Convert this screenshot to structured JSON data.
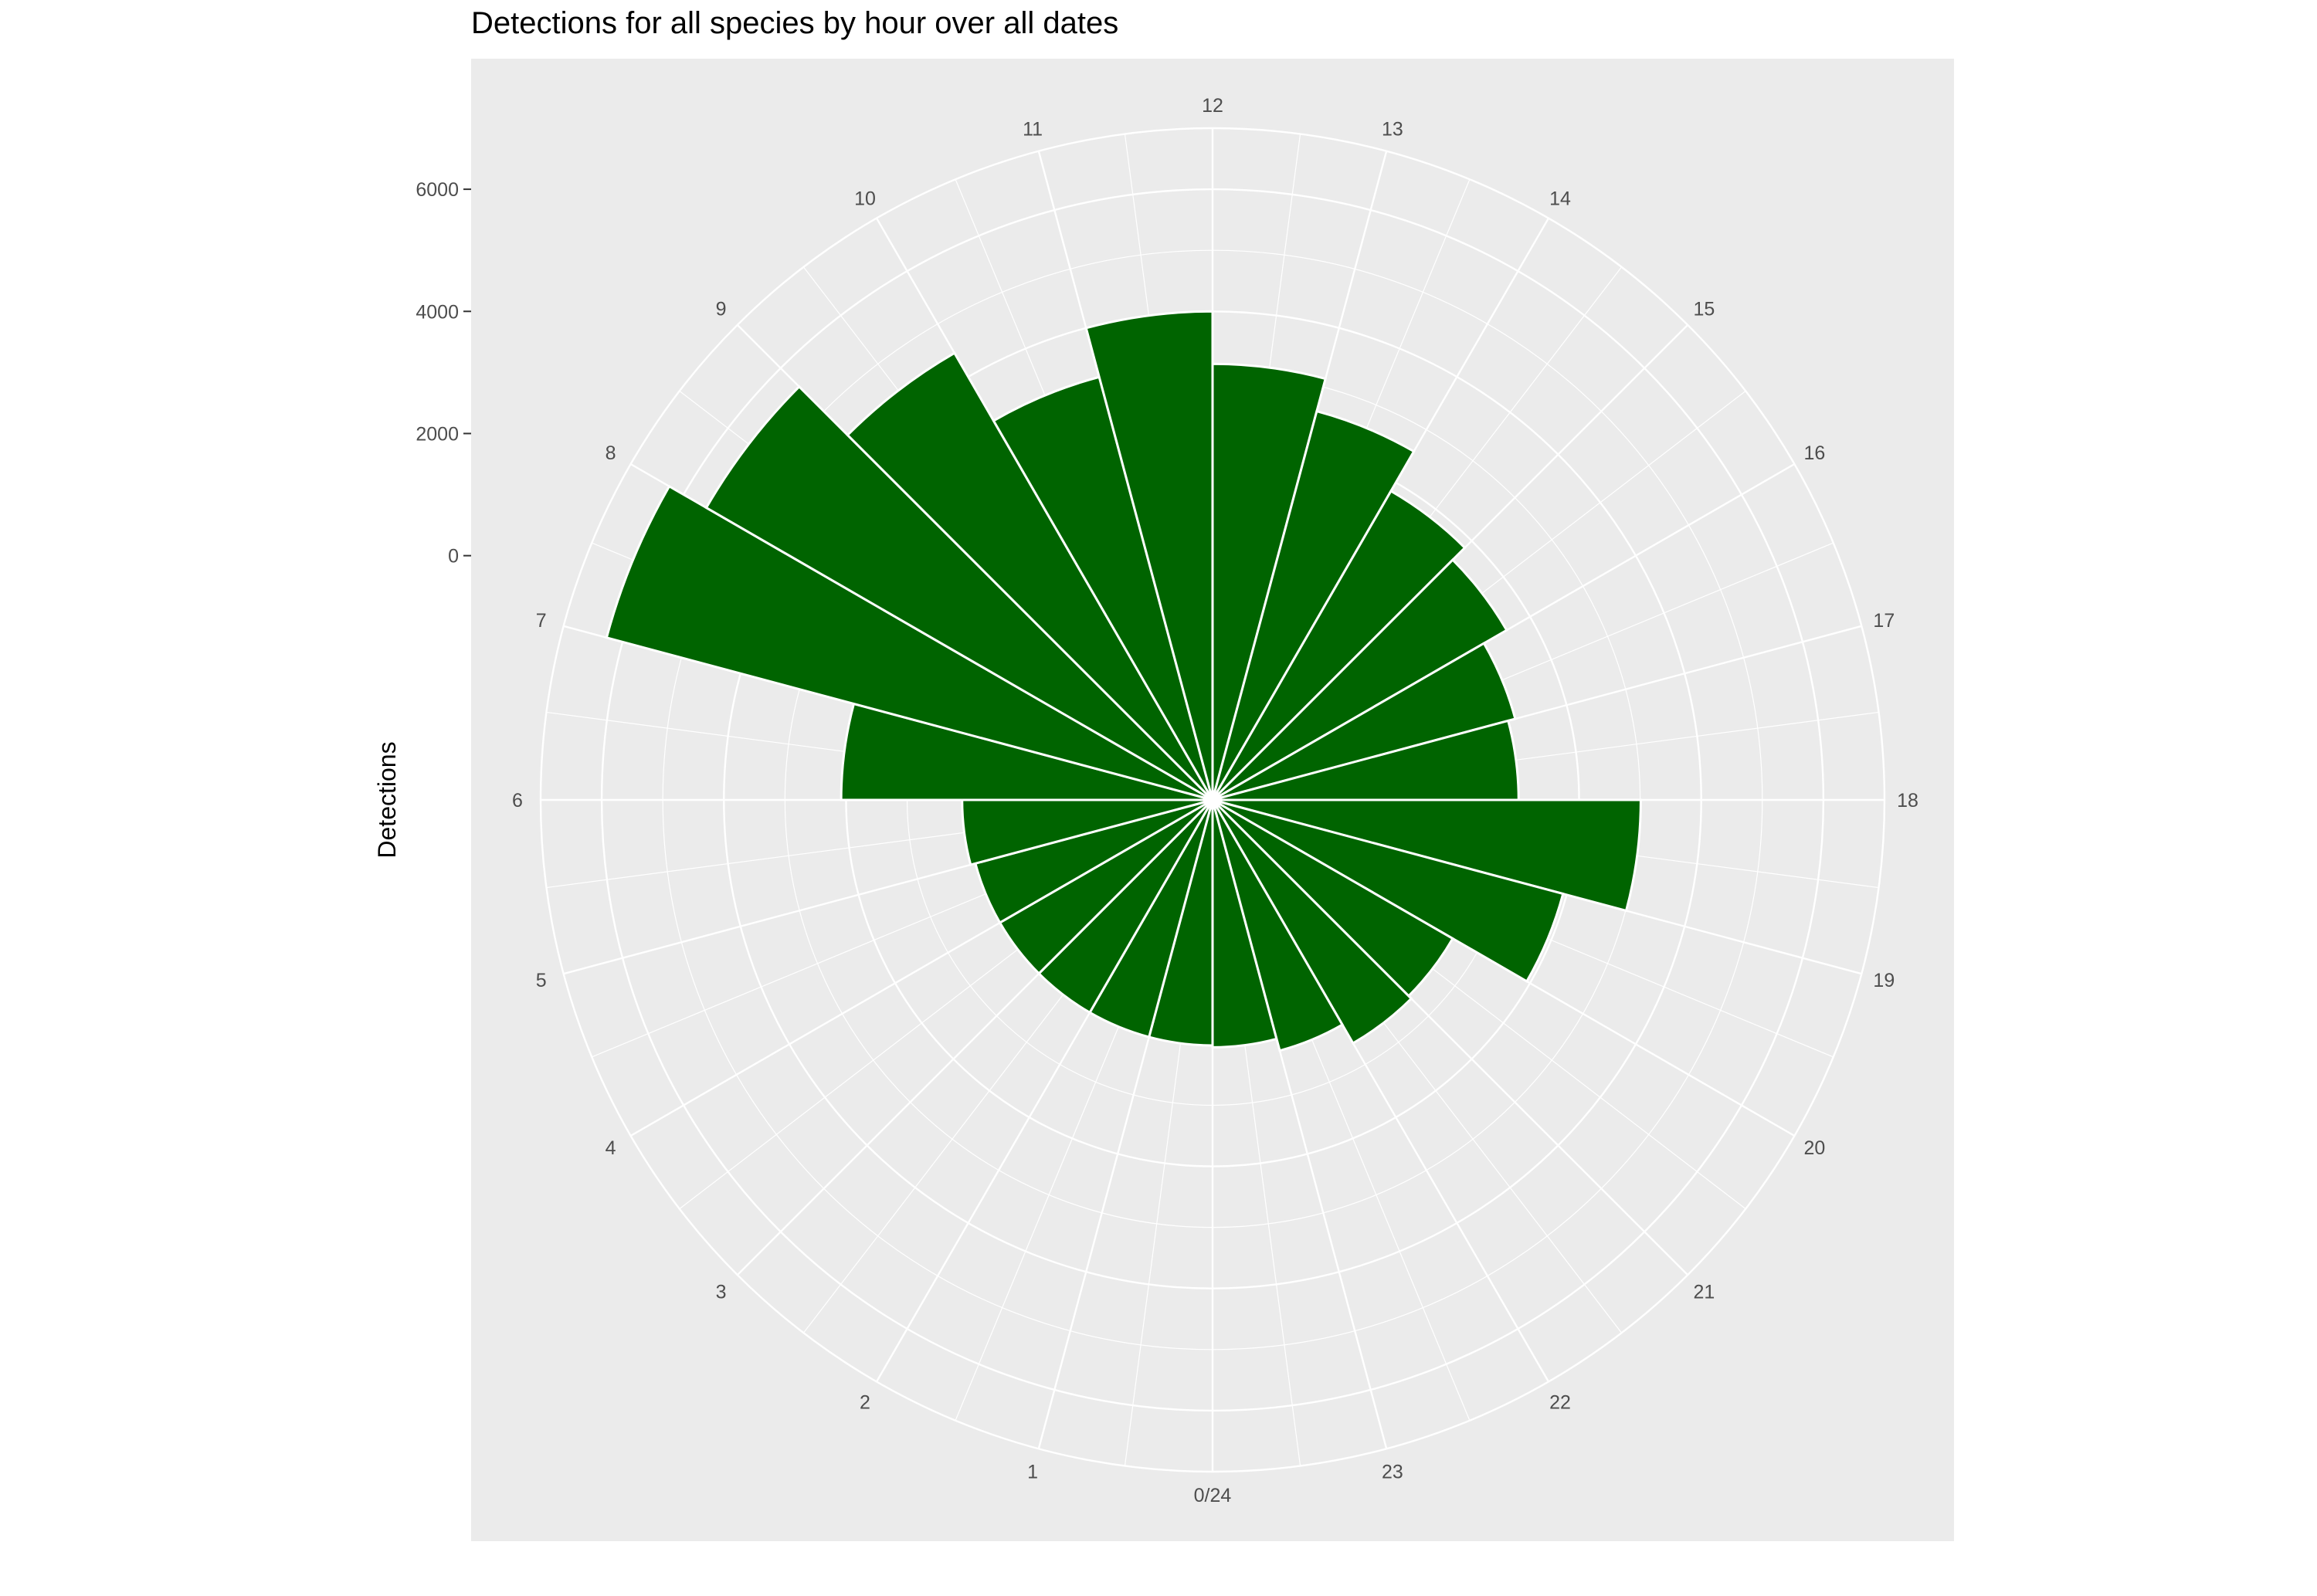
{
  "chart_data": {
    "type": "bar",
    "coord": "polar",
    "title": "Detections for all species by hour over all dates",
    "xlabel": "",
    "ylabel": "Detections",
    "categories": [
      "0/24",
      "1",
      "2",
      "3",
      "4",
      "5",
      "6",
      "7",
      "8",
      "9",
      "10",
      "11",
      "12",
      "13",
      "14",
      "15",
      "16",
      "17",
      "18",
      "19",
      "20",
      "21",
      "22",
      "23"
    ],
    "values": [
      50,
      20,
      20,
      20,
      20,
      20,
      100,
      2080,
      6270,
      5570,
      4450,
      3170,
      4000,
      3140,
      2590,
      1840,
      1560,
      1130,
      1010,
      3010,
      1940,
      540,
      600,
      250
    ],
    "yticks": [
      0,
      2000,
      4000,
      6000
    ],
    "ylim": [
      -4000,
      7000
    ],
    "bar_color": "#006400",
    "panel_color": "#ebebeb",
    "grid_color": "#ffffff",
    "legend": false
  }
}
